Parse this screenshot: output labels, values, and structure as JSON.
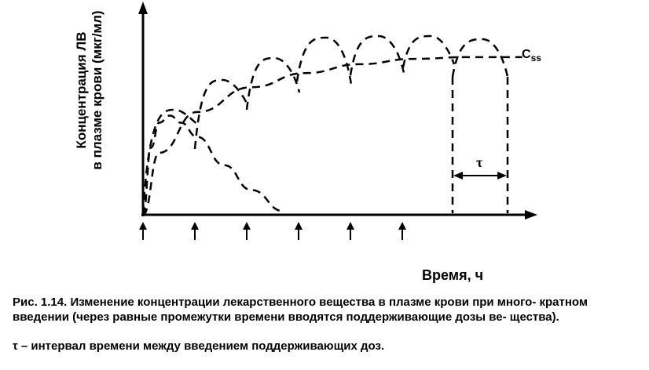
{
  "chart_data": {
    "type": "line",
    "ylabel_line1": "Концентрация ЛВ",
    "ylabel_line2": "в плазме крови (мкг/мл)",
    "xlabel": "Время, ч",
    "steady_state_label_main": "C",
    "steady_state_label_sub": "ss",
    "interval_label": "τ",
    "grid": false,
    "axes": [
      "x-arrow",
      "y-arrow"
    ],
    "dose_marker_count": 6,
    "series": [
      {
        "style": "dashed",
        "description_role": "single-dose",
        "x": [
          0,
          0.15,
          0.3,
          0.5,
          0.7,
          1.0,
          1.5,
          2.0,
          2.6
        ],
        "values": [
          0,
          0.38,
          0.52,
          0.56,
          0.52,
          0.44,
          0.28,
          0.14,
          0.02
        ]
      },
      {
        "style": "dashed",
        "description_role": "steady-state-envelope",
        "x": [
          0,
          0.3,
          1.0,
          2.0,
          3.0,
          4.0,
          5.0,
          6.0,
          7.0
        ],
        "values": [
          0,
          0.35,
          0.58,
          0.72,
          0.8,
          0.85,
          0.88,
          0.89,
          0.89
        ]
      }
    ],
    "ylim": [
      0,
      1
    ],
    "xlim": [
      0,
      7.5
    ]
  },
  "caption": {
    "lead": "Рис. 1.14.",
    "text": "Изменение концентрации лекарственного вещества в плазме крови при много- кратном введении (через равные промежутки времени вводятся поддерживающие дозы ве- щества).",
    "note": "τ – интервал времени между введением поддерживающих доз."
  }
}
